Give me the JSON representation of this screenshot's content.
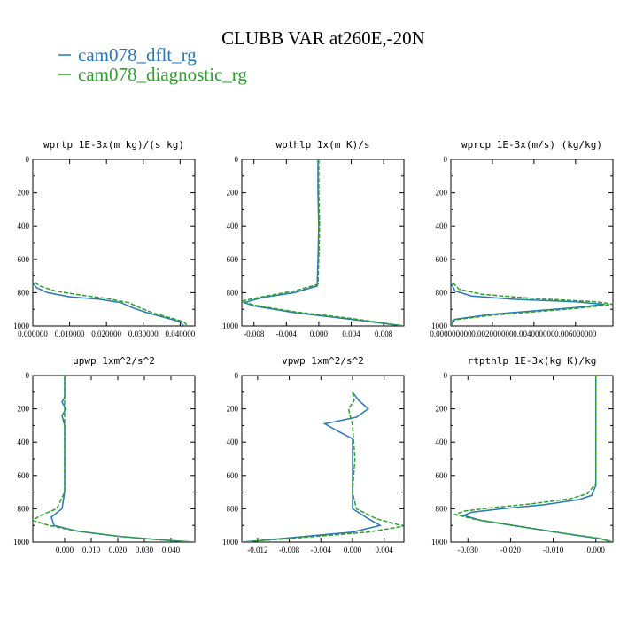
{
  "figure": {
    "title": "CLUBB VAR at260E,-20N",
    "legend": [
      {
        "name": "cam078_dflt_rg",
        "color": "#2878b5"
      },
      {
        "name": "cam078_diagnostic_rg",
        "color": "#2ca02c"
      }
    ]
  },
  "chart_data": [
    {
      "type": "line",
      "title": "wprtp  1E-3x(m kg)/(s kg)",
      "xlim": [
        0.0,
        0.044
      ],
      "ylim": [
        1000,
        0
      ],
      "xticks": [
        0.0,
        0.01,
        0.02,
        0.03,
        0.04
      ],
      "xtick_labels": [
        "0.000000",
        "0.010000",
        "0.020000",
        "0.030000",
        "0.040000"
      ],
      "yticks": [
        0,
        200,
        400,
        600,
        800,
        1000
      ],
      "ytick_labels": [
        "0",
        "200",
        "400",
        "600",
        "800",
        "1000"
      ],
      "series": [
        {
          "name": "cam078_dflt_rg",
          "color": "#2878b5",
          "dashed": false,
          "points": [
            [
              0.0,
              0
            ],
            [
              0.0,
              740
            ],
            [
              0.001,
              770
            ],
            [
              0.004,
              800
            ],
            [
              0.01,
              825
            ],
            [
              0.018,
              840
            ],
            [
              0.024,
              860
            ],
            [
              0.027,
              890
            ],
            [
              0.031,
              920
            ],
            [
              0.036,
              950
            ],
            [
              0.04,
              975
            ],
            [
              0.041,
              1000
            ]
          ]
        },
        {
          "name": "cam078_diagnostic_rg",
          "color": "#2ca02c",
          "dashed": true,
          "points": [
            [
              0.0,
              0
            ],
            [
              0.0,
              730
            ],
            [
              0.002,
              760
            ],
            [
              0.006,
              790
            ],
            [
              0.013,
              815
            ],
            [
              0.02,
              835
            ],
            [
              0.026,
              860
            ],
            [
              0.029,
              890
            ],
            [
              0.033,
              925
            ],
            [
              0.038,
              955
            ],
            [
              0.041,
              975
            ],
            [
              0.042,
              1000
            ]
          ]
        }
      ]
    },
    {
      "type": "line",
      "title": "wpthlp  1x(m K)/s",
      "xlim": [
        -0.0095,
        0.0105
      ],
      "ylim": [
        1000,
        0
      ],
      "xticks": [
        -0.008,
        -0.004,
        0.0,
        0.004,
        0.008
      ],
      "xtick_labels": [
        "-0.008",
        "-0.004",
        "0.000",
        "0.004",
        "0.008"
      ],
      "yticks": [
        0,
        200,
        400,
        600,
        800,
        1000
      ],
      "ytick_labels": [
        "0",
        "200",
        "400",
        "600",
        "800",
        "1000"
      ],
      "series": [
        {
          "name": "cam078_dflt_rg",
          "color": "#2878b5",
          "dashed": false,
          "points": [
            [
              -0.0001,
              0
            ],
            [
              -0.0001,
              200
            ],
            [
              0.0,
              400
            ],
            [
              -0.0001,
              600
            ],
            [
              -0.0002,
              760
            ],
            [
              -0.003,
              800
            ],
            [
              -0.007,
              830
            ],
            [
              -0.0092,
              860
            ],
            [
              -0.008,
              880
            ],
            [
              -0.003,
              920
            ],
            [
              0.004,
              960
            ],
            [
              0.0105,
              1000
            ]
          ]
        },
        {
          "name": "cam078_diagnostic_rg",
          "color": "#2ca02c",
          "dashed": true,
          "points": [
            [
              0.0,
              0
            ],
            [
              0.0,
              200
            ],
            [
              0.0001,
              400
            ],
            [
              0.0,
              600
            ],
            [
              -0.0001,
              750
            ],
            [
              -0.003,
              790
            ],
            [
              -0.007,
              825
            ],
            [
              -0.0095,
              850
            ],
            [
              -0.008,
              875
            ],
            [
              -0.003,
              915
            ],
            [
              0.004,
              955
            ],
            [
              0.0105,
              1000
            ]
          ]
        }
      ]
    },
    {
      "type": "line",
      "title": "wprcp  1E-3x(m/s) (kg/kg)",
      "xlim": [
        0.0,
        0.0078
      ],
      "ylim": [
        1000,
        0
      ],
      "xticks": [
        0.0,
        0.002,
        0.004,
        0.006
      ],
      "xtick_labels": [
        "0.000000000",
        "0.002000000",
        "0.004000000",
        "0.006000000"
      ],
      "yticks": [
        0,
        200,
        400,
        600,
        800,
        1000
      ],
      "ytick_labels": [
        "0",
        "200",
        "400",
        "600",
        "800",
        "1000"
      ],
      "series": [
        {
          "name": "cam078_dflt_rg",
          "color": "#2878b5",
          "dashed": false,
          "points": [
            [
              0.0,
              0
            ],
            [
              0.0,
              740
            ],
            [
              0.0002,
              790
            ],
            [
              0.001,
              820
            ],
            [
              0.003,
              840
            ],
            [
              0.006,
              855
            ],
            [
              0.0074,
              870
            ],
            [
              0.006,
              890
            ],
            [
              0.002,
              930
            ],
            [
              0.0002,
              960
            ],
            [
              0.0,
              1000
            ]
          ]
        },
        {
          "name": "cam078_diagnostic_rg",
          "color": "#2ca02c",
          "dashed": true,
          "points": [
            [
              0.0,
              0
            ],
            [
              0.0,
              730
            ],
            [
              0.0004,
              780
            ],
            [
              0.0015,
              810
            ],
            [
              0.004,
              835
            ],
            [
              0.007,
              855
            ],
            [
              0.0078,
              870
            ],
            [
              0.006,
              895
            ],
            [
              0.002,
              935
            ],
            [
              0.0001,
              965
            ],
            [
              0.0,
              1000
            ]
          ]
        }
      ]
    },
    {
      "type": "line",
      "title": "upwp  1xm^2/s^2",
      "xlim": [
        -0.012,
        0.049
      ],
      "ylim": [
        1000,
        0
      ],
      "xticks": [
        0.0,
        0.01,
        0.02,
        0.03,
        0.04
      ],
      "xtick_labels": [
        "0.000",
        "0.010",
        "0.020",
        "0.030",
        "0.040"
      ],
      "yticks": [
        0,
        200,
        400,
        600,
        800,
        1000
      ],
      "ytick_labels": [
        "0",
        "200",
        "400",
        "600",
        "800",
        "1000"
      ],
      "series": [
        {
          "name": "cam078_dflt_rg",
          "color": "#2878b5",
          "dashed": false,
          "points": [
            [
              0.0,
              0
            ],
            [
              0.0,
              130
            ],
            [
              -0.001,
              160
            ],
            [
              0.0005,
              200
            ],
            [
              -0.001,
              240
            ],
            [
              0.0,
              300
            ],
            [
              0.0,
              500
            ],
            [
              0.0,
              700
            ],
            [
              -0.001,
              800
            ],
            [
              -0.005,
              850
            ],
            [
              -0.004,
              900
            ],
            [
              0.005,
              935
            ],
            [
              0.02,
              965
            ],
            [
              0.035,
              985
            ],
            [
              0.048,
              1000
            ]
          ]
        },
        {
          "name": "cam078_diagnostic_rg",
          "color": "#2ca02c",
          "dashed": true,
          "points": [
            [
              0.0,
              0
            ],
            [
              0.0,
              200
            ],
            [
              0.0,
              500
            ],
            [
              0.0,
              700
            ],
            [
              -0.003,
              800
            ],
            [
              -0.009,
              840
            ],
            [
              -0.012,
              870
            ],
            [
              -0.006,
              900
            ],
            [
              0.005,
              935
            ],
            [
              0.02,
              965
            ],
            [
              0.035,
              985
            ],
            [
              0.049,
              1000
            ]
          ]
        }
      ]
    },
    {
      "type": "line",
      "title": "vpwp  1xm^2/s^2",
      "xlim": [
        -0.014,
        0.0065
      ],
      "ylim": [
        1000,
        0
      ],
      "xticks": [
        -0.012,
        -0.008,
        -0.004,
        0.0,
        0.004
      ],
      "xtick_labels": [
        "-0.012",
        "-0.008",
        "-0.004",
        "0.000",
        "0.004"
      ],
      "yticks": [
        0,
        200,
        400,
        600,
        800,
        1000
      ],
      "ytick_labels": [
        "0",
        "200",
        "400",
        "600",
        "800",
        "1000"
      ],
      "series": [
        {
          "name": "cam078_dflt_rg",
          "color": "#2878b5",
          "dashed": false,
          "points": [
            [
              0.0,
              100
            ],
            [
              0.0008,
              150
            ],
            [
              0.002,
              200
            ],
            [
              0.0005,
              250
            ],
            [
              -0.0035,
              290
            ],
            [
              -0.002,
              330
            ],
            [
              0.0,
              380
            ],
            [
              0.0,
              500
            ],
            [
              0.0,
              700
            ],
            [
              0.0,
              800
            ],
            [
              0.002,
              860
            ],
            [
              0.0035,
              900
            ],
            [
              0.0,
              940
            ],
            [
              -0.008,
              975
            ],
            [
              -0.014,
              1000
            ]
          ]
        },
        {
          "name": "cam078_diagnostic_rg",
          "color": "#2ca02c",
          "dashed": true,
          "points": [
            [
              0.0,
              100
            ],
            [
              0.0002,
              150
            ],
            [
              -0.0005,
              200
            ],
            [
              0.0,
              300
            ],
            [
              0.0003,
              500
            ],
            [
              0.0,
              700
            ],
            [
              0.0005,
              800
            ],
            [
              0.003,
              860
            ],
            [
              0.0065,
              905
            ],
            [
              0.002,
              940
            ],
            [
              -0.007,
              975
            ],
            [
              -0.014,
              1000
            ]
          ]
        }
      ]
    },
    {
      "type": "line",
      "title": "rtpthlp  1E-3x(kg K)/kg",
      "xlim": [
        -0.034,
        0.004
      ],
      "ylim": [
        1000,
        0
      ],
      "xticks": [
        -0.03,
        -0.02,
        -0.01,
        0.0
      ],
      "xtick_labels": [
        "-0.030",
        "-0.020",
        "-0.010",
        "0.000"
      ],
      "yticks": [
        0,
        200,
        400,
        600,
        800,
        1000
      ],
      "ytick_labels": [
        "0",
        "200",
        "400",
        "600",
        "800",
        "1000"
      ],
      "series": [
        {
          "name": "cam078_dflt_rg",
          "color": "#2878b5",
          "dashed": false,
          "points": [
            [
              0.0,
              0
            ],
            [
              0.0,
              400
            ],
            [
              0.0,
              660
            ],
            [
              -0.001,
              720
            ],
            [
              -0.004,
              745
            ],
            [
              -0.012,
              775
            ],
            [
              -0.022,
              800
            ],
            [
              -0.029,
              820
            ],
            [
              -0.031,
              840
            ],
            [
              -0.027,
              870
            ],
            [
              -0.017,
              910
            ],
            [
              -0.007,
              950
            ],
            [
              0.001,
              980
            ],
            [
              0.004,
              1000
            ]
          ]
        },
        {
          "name": "cam078_diagnostic_rg",
          "color": "#2ca02c",
          "dashed": true,
          "points": [
            [
              0.0,
              0
            ],
            [
              0.0,
              400
            ],
            [
              0.0,
              650
            ],
            [
              -0.002,
              710
            ],
            [
              -0.006,
              740
            ],
            [
              -0.015,
              770
            ],
            [
              -0.025,
              795
            ],
            [
              -0.031,
              815
            ],
            [
              -0.033,
              835
            ],
            [
              -0.028,
              865
            ],
            [
              -0.018,
              905
            ],
            [
              -0.008,
              945
            ],
            [
              0.001,
              978
            ],
            [
              0.004,
              1000
            ]
          ]
        }
      ]
    }
  ]
}
